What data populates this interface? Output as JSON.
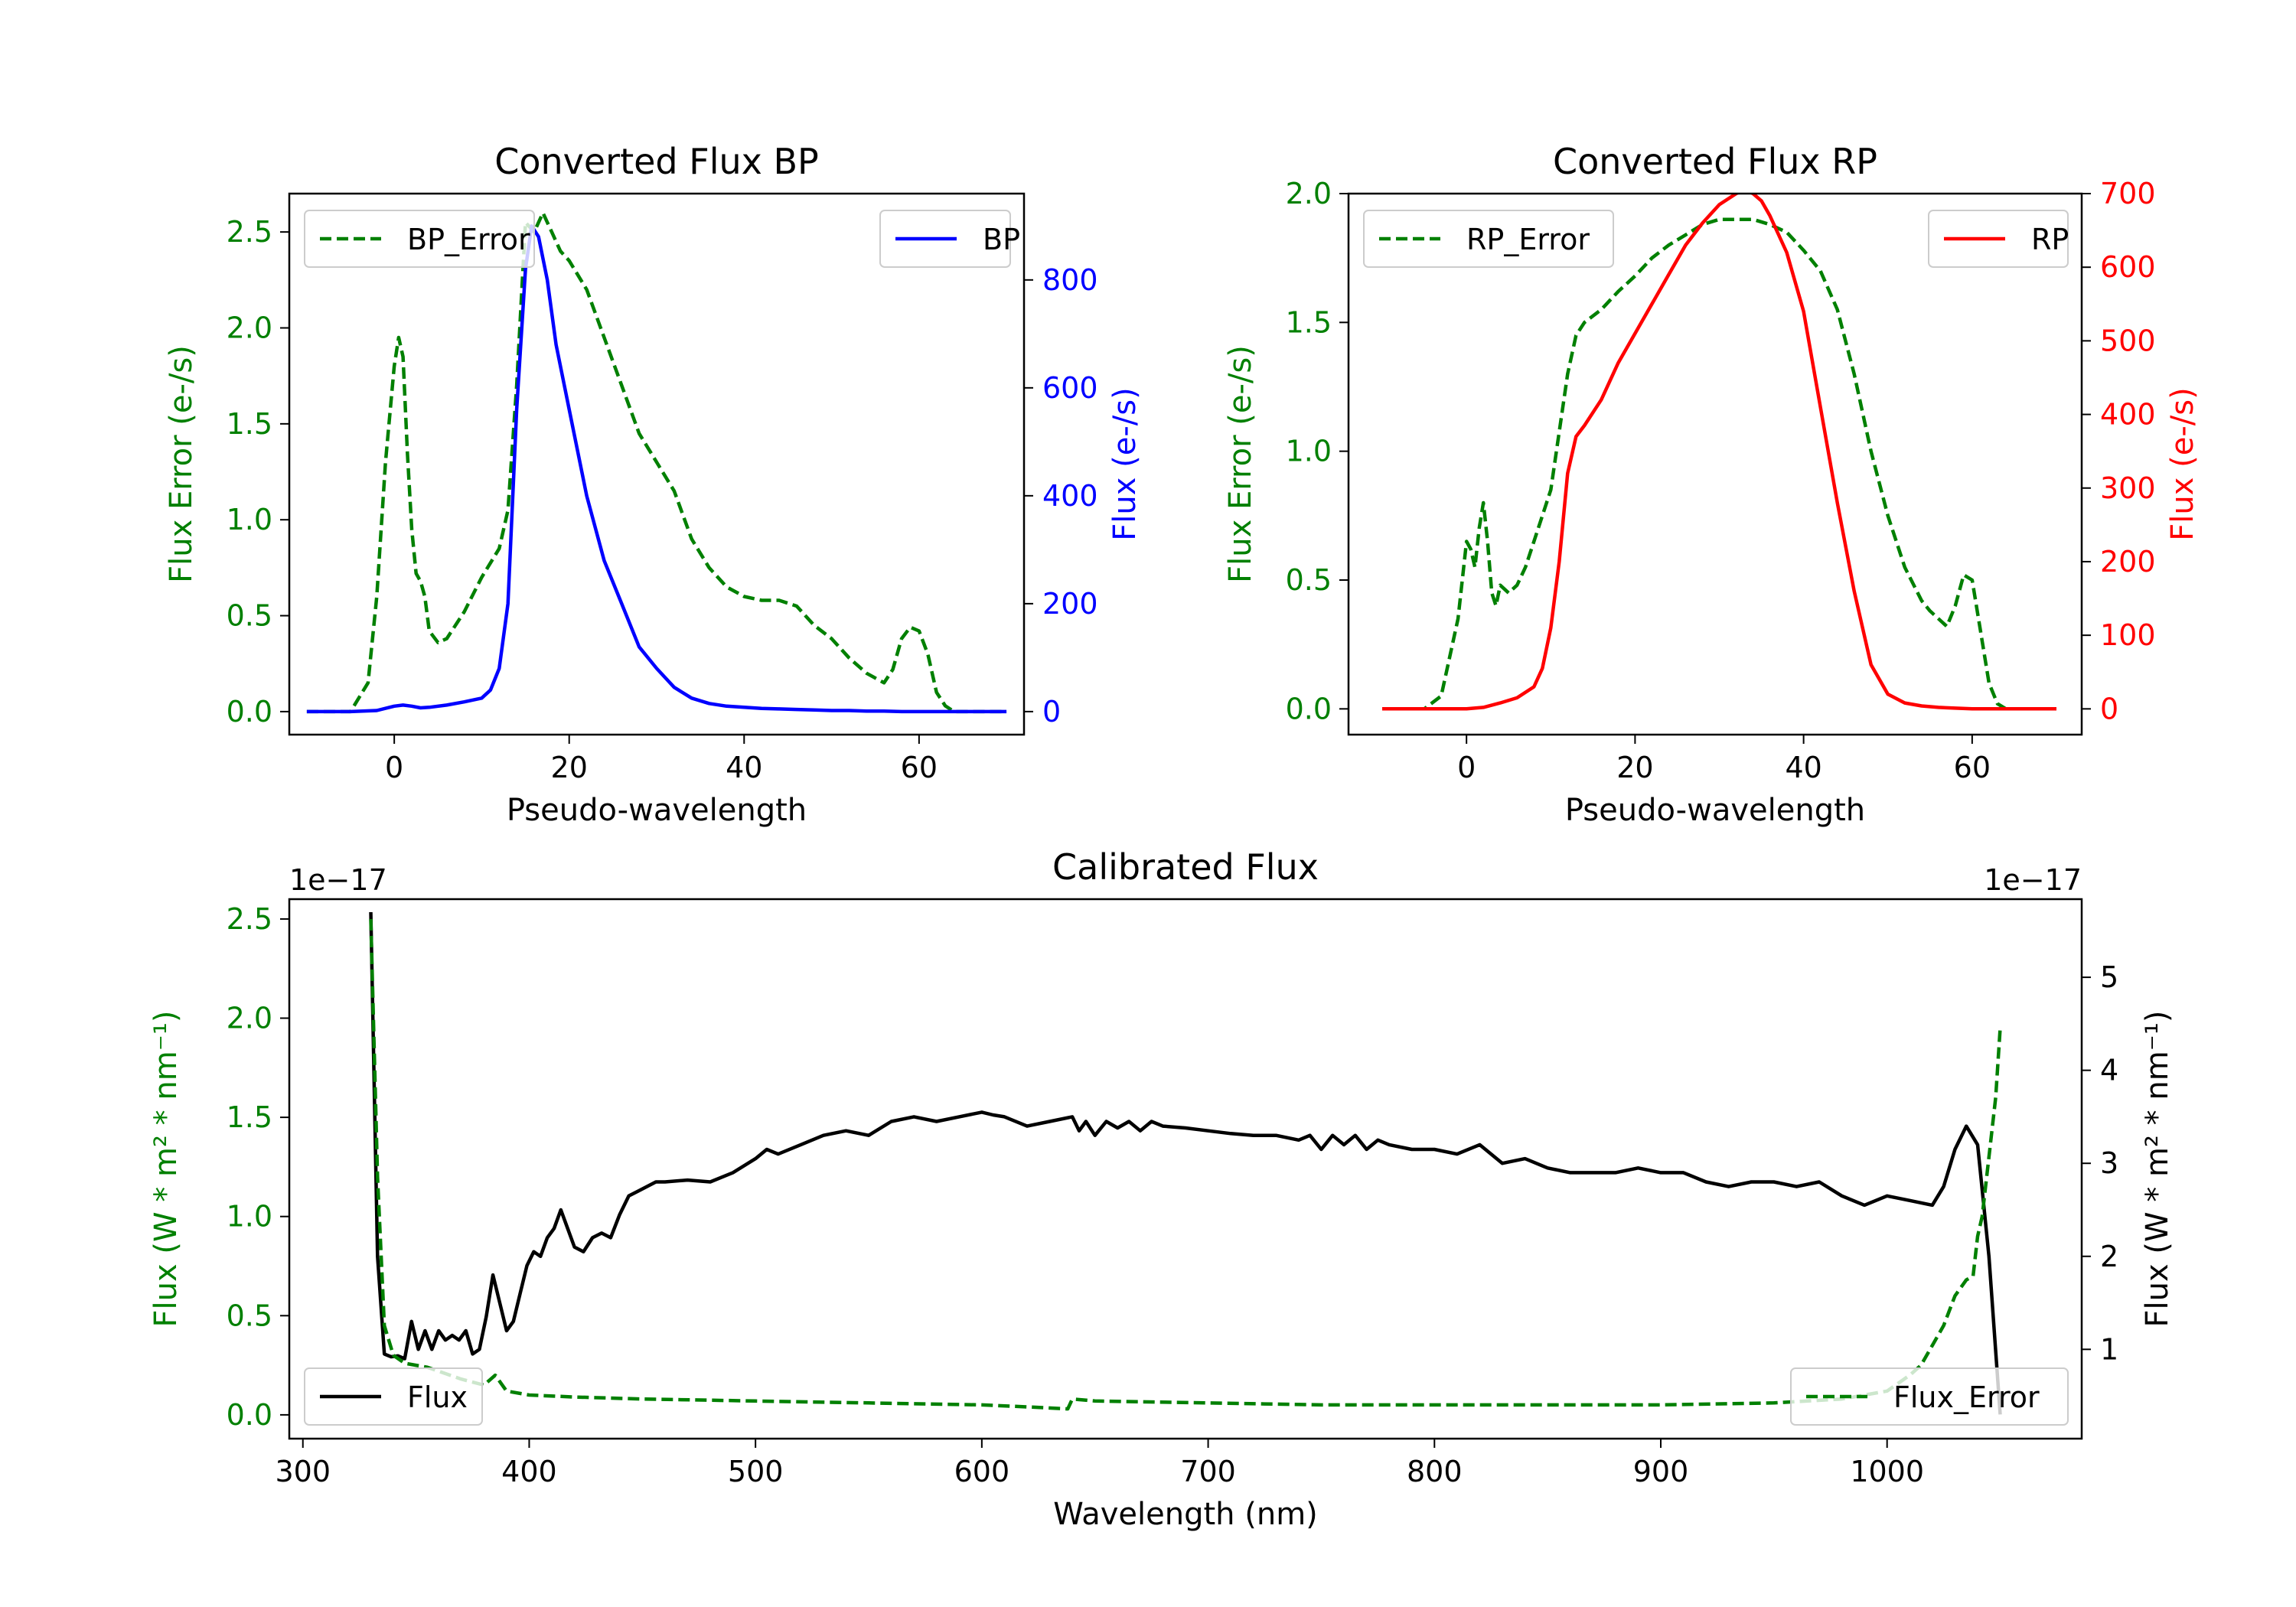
{
  "chart_data": [
    {
      "type": "line",
      "title": "Converted Flux BP",
      "xlabel": "Pseudo-wavelength",
      "ylabel_left": "Flux Error (e-/s)",
      "ylabel_right": "Flux (e-/s)",
      "xlim": [
        -12,
        72
      ],
      "ylim_left": [
        -0.12,
        2.7
      ],
      "ylim_right": [
        -42.7,
        960
      ],
      "xticks": [
        "0",
        "20",
        "40",
        "60"
      ],
      "yticks_left": [
        "0.0",
        "0.5",
        "1.0",
        "1.5",
        "2.0",
        "2.5"
      ],
      "yticks_right": [
        "0",
        "200",
        "400",
        "600",
        "800"
      ],
      "colors": {
        "left": "#008000",
        "right": "#0000ff"
      },
      "legend_left": "BP_Error",
      "legend_right": "BP",
      "series": [
        {
          "name": "BP_Error",
          "axis": "left",
          "style": "dashed",
          "x": [
            -10,
            -5,
            -3,
            -2,
            -1,
            0,
            0.5,
            1,
            1.5,
            2,
            2.5,
            3,
            3.5,
            4,
            5,
            6,
            8,
            10,
            12,
            13,
            14,
            15,
            16,
            17,
            18,
            19,
            20,
            22,
            24,
            26,
            28,
            30,
            32,
            34,
            36,
            38,
            40,
            42,
            44,
            46,
            48,
            50,
            52,
            54,
            56,
            57,
            58,
            59,
            60,
            61,
            62,
            63,
            64,
            66,
            68,
            70
          ],
          "y": [
            0.0,
            0.0,
            0.15,
            0.6,
            1.3,
            1.8,
            1.95,
            1.85,
            1.35,
            0.95,
            0.72,
            0.68,
            0.6,
            0.42,
            0.36,
            0.38,
            0.52,
            0.7,
            0.85,
            1.05,
            1.7,
            2.55,
            2.5,
            2.6,
            2.5,
            2.4,
            2.35,
            2.2,
            1.95,
            1.7,
            1.45,
            1.3,
            1.15,
            0.9,
            0.75,
            0.65,
            0.6,
            0.58,
            0.58,
            0.55,
            0.45,
            0.38,
            0.28,
            0.2,
            0.15,
            0.22,
            0.38,
            0.44,
            0.42,
            0.3,
            0.1,
            0.03,
            0.0,
            0.0,
            0.0,
            0.0
          ]
        },
        {
          "name": "BP",
          "axis": "right",
          "style": "solid",
          "x": [
            -10,
            -5,
            -2,
            0,
            1,
            2,
            3,
            4,
            6,
            8,
            10,
            11,
            12,
            13,
            14,
            15,
            15.7,
            16.5,
            17.5,
            18.5,
            20,
            22,
            24,
            26,
            28,
            30,
            32,
            34,
            36,
            38,
            40,
            42,
            44,
            46,
            48,
            50,
            52,
            54,
            56,
            58,
            60,
            62,
            64,
            66,
            68,
            70
          ],
          "y": [
            0,
            0,
            2,
            10,
            12,
            10,
            7,
            8,
            12,
            18,
            25,
            40,
            80,
            200,
            560,
            820,
            900,
            880,
            800,
            680,
            560,
            400,
            280,
            200,
            120,
            80,
            45,
            25,
            15,
            10,
            8,
            6,
            5,
            4,
            3,
            2,
            2,
            1,
            1,
            0,
            0,
            0,
            0,
            0,
            0,
            0
          ]
        }
      ]
    },
    {
      "type": "line",
      "title": "Converted Flux RP",
      "xlabel": "Pseudo-wavelength",
      "ylabel_left": "Flux Error (e-/s)",
      "ylabel_right": "Flux (e-/s)",
      "xlim": [
        -14,
        73
      ],
      "ylim_left": [
        -0.1,
        2.0
      ],
      "ylim_right": [
        -35,
        700
      ],
      "xticks": [
        "0",
        "20",
        "40",
        "60"
      ],
      "yticks_left": [
        "0.0",
        "0.5",
        "1.0",
        "1.5",
        "2.0"
      ],
      "yticks_right": [
        "0",
        "100",
        "200",
        "300",
        "400",
        "500",
        "600",
        "700"
      ],
      "colors": {
        "left": "#008000",
        "right": "#ff0000"
      },
      "legend_left": "RP_Error",
      "legend_right": "RP",
      "series": [
        {
          "name": "RP_Error",
          "axis": "left",
          "style": "dashed",
          "x": [
            -10,
            -5,
            -3,
            -1,
            0,
            0.5,
            1,
            1.5,
            2,
            2.5,
            3,
            3.5,
            4,
            5,
            6,
            7,
            8,
            10,
            12,
            13,
            14,
            16,
            18,
            20,
            22,
            24,
            26,
            28,
            30,
            32,
            34,
            36,
            38,
            40,
            42,
            44,
            46,
            48,
            50,
            52,
            54,
            55,
            56,
            57,
            58,
            59,
            60,
            61,
            62,
            63,
            64,
            66,
            70
          ],
          "y": [
            0.0,
            0.0,
            0.05,
            0.35,
            0.65,
            0.62,
            0.55,
            0.7,
            0.8,
            0.65,
            0.45,
            0.4,
            0.48,
            0.45,
            0.48,
            0.55,
            0.65,
            0.85,
            1.3,
            1.45,
            1.5,
            1.55,
            1.62,
            1.68,
            1.75,
            1.8,
            1.84,
            1.88,
            1.9,
            1.9,
            1.9,
            1.88,
            1.85,
            1.78,
            1.7,
            1.55,
            1.3,
            1.0,
            0.75,
            0.55,
            0.42,
            0.38,
            0.35,
            0.32,
            0.4,
            0.52,
            0.5,
            0.3,
            0.1,
            0.02,
            0.0,
            0.0,
            0.0
          ]
        },
        {
          "name": "RP",
          "axis": "right",
          "style": "solid",
          "x": [
            -10,
            -5,
            0,
            2,
            4,
            6,
            8,
            9,
            10,
            11,
            12,
            13,
            14,
            16,
            18,
            20,
            22,
            24,
            26,
            28,
            30,
            32,
            33,
            34,
            35,
            36,
            38,
            40,
            42,
            44,
            46,
            48,
            50,
            52,
            54,
            56,
            58,
            60,
            62,
            64,
            66,
            70
          ],
          "y": [
            0,
            0,
            0,
            2,
            8,
            15,
            30,
            55,
            110,
            200,
            320,
            370,
            385,
            420,
            470,
            510,
            550,
            590,
            630,
            660,
            685,
            700,
            705,
            700,
            690,
            670,
            620,
            540,
            410,
            280,
            160,
            60,
            20,
            8,
            4,
            2,
            1,
            0,
            0,
            0,
            0,
            0
          ]
        }
      ]
    },
    {
      "type": "line",
      "title": "Calibrated Flux",
      "xlabel": "Wavelength (nm)",
      "ylabel_left": "Flux (W * m² * nm⁻¹)",
      "ylabel_right": "Flux (W * m² * nm⁻¹)",
      "offset_left": "1e−17",
      "offset_right": "1e−17",
      "xlim": [
        294,
        1086
      ],
      "ylim_left": [
        -0.12,
        2.6
      ],
      "ylim_right": [
        0.04,
        5.84
      ],
      "xticks": [
        "300",
        "400",
        "500",
        "600",
        "700",
        "800",
        "900",
        "1000"
      ],
      "yticks_left": [
        "0.0",
        "0.5",
        "1.0",
        "1.5",
        "2.0",
        "2.5"
      ],
      "yticks_right": [
        "1",
        "2",
        "3",
        "4",
        "5"
      ],
      "colors": {
        "left": "#008000",
        "right": "#000000"
      },
      "legend_left": "Flux",
      "legend_right": "Flux_Error",
      "series": [
        {
          "name": "Flux",
          "axis": "right",
          "style": "solid",
          "x": [
            330,
            333,
            336,
            339,
            342,
            345,
            348,
            351,
            354,
            357,
            360,
            363,
            366,
            369,
            372,
            375,
            378,
            381,
            384,
            387,
            390,
            393,
            396,
            399,
            402,
            405,
            408,
            411,
            414,
            417,
            420,
            424,
            428,
            432,
            436,
            440,
            444,
            448,
            452,
            456,
            460,
            470,
            480,
            490,
            500,
            505,
            510,
            520,
            530,
            540,
            550,
            560,
            570,
            580,
            590,
            600,
            605,
            610,
            620,
            630,
            640,
            643,
            646,
            650,
            655,
            660,
            665,
            670,
            675,
            680,
            690,
            700,
            710,
            720,
            730,
            740,
            745,
            750,
            755,
            760,
            765,
            770,
            775,
            780,
            790,
            800,
            810,
            820,
            830,
            840,
            850,
            860,
            870,
            880,
            890,
            900,
            910,
            920,
            930,
            940,
            950,
            960,
            970,
            980,
            990,
            1000,
            1010,
            1020,
            1025,
            1030,
            1035,
            1040,
            1045,
            1050
          ],
          "y": [
            5.7,
            2.0,
            0.95,
            0.92,
            0.93,
            0.9,
            1.3,
            1.0,
            1.2,
            1.0,
            1.2,
            1.1,
            1.15,
            1.1,
            1.2,
            0.95,
            1.0,
            1.35,
            1.8,
            1.5,
            1.2,
            1.3,
            1.6,
            1.9,
            2.05,
            2.0,
            2.2,
            2.3,
            2.5,
            2.3,
            2.1,
            2.05,
            2.2,
            2.25,
            2.2,
            2.45,
            2.65,
            2.7,
            2.75,
            2.8,
            2.8,
            2.82,
            2.8,
            2.9,
            3.05,
            3.15,
            3.1,
            3.2,
            3.3,
            3.35,
            3.3,
            3.45,
            3.5,
            3.45,
            3.5,
            3.55,
            3.52,
            3.5,
            3.4,
            3.45,
            3.5,
            3.35,
            3.45,
            3.3,
            3.45,
            3.38,
            3.45,
            3.35,
            3.45,
            3.4,
            3.38,
            3.35,
            3.32,
            3.3,
            3.3,
            3.25,
            3.3,
            3.15,
            3.3,
            3.2,
            3.3,
            3.15,
            3.25,
            3.2,
            3.15,
            3.15,
            3.1,
            3.2,
            3.0,
            3.05,
            2.95,
            2.9,
            2.9,
            2.9,
            2.95,
            2.9,
            2.9,
            2.8,
            2.75,
            2.8,
            2.8,
            2.75,
            2.8,
            2.65,
            2.55,
            2.65,
            2.6,
            2.55,
            2.75,
            3.15,
            3.4,
            3.2,
            2.0,
            0.3
          ]
        },
        {
          "name": "Flux_Error",
          "axis": "left",
          "style": "dashed",
          "x": [
            330,
            333,
            336,
            340,
            345,
            350,
            355,
            360,
            370,
            380,
            385,
            390,
            400,
            420,
            450,
            500,
            550,
            600,
            620,
            638,
            640,
            650,
            700,
            750,
            800,
            850,
            900,
            950,
            980,
            1000,
            1010,
            1015,
            1020,
            1025,
            1030,
            1035,
            1038,
            1040,
            1042,
            1045,
            1048,
            1050
          ],
          "y": [
            2.5,
            1.2,
            0.45,
            0.3,
            0.26,
            0.25,
            0.24,
            0.22,
            0.18,
            0.15,
            0.2,
            0.12,
            0.1,
            0.09,
            0.08,
            0.07,
            0.06,
            0.05,
            0.04,
            0.03,
            0.08,
            0.07,
            0.06,
            0.05,
            0.05,
            0.05,
            0.05,
            0.06,
            0.08,
            0.12,
            0.2,
            0.25,
            0.35,
            0.45,
            0.6,
            0.68,
            0.7,
            0.9,
            1.0,
            1.3,
            1.6,
            1.95
          ]
        }
      ]
    }
  ]
}
